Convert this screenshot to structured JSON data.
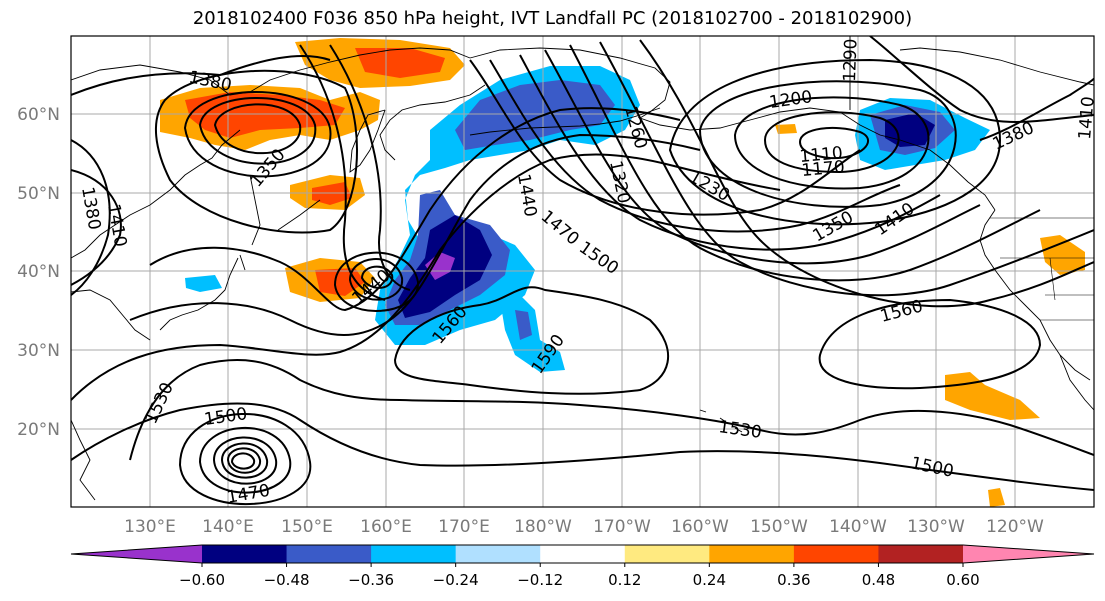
{
  "title": "2018102400 F036 850 hPa height, IVT Landfall PC (2018102700 - 2018102900)",
  "lat_labels": [
    "60°N",
    "50°N",
    "40°N",
    "30°N",
    "20°N"
  ],
  "lon_labels": [
    "130°E",
    "140°E",
    "150°E",
    "160°E",
    "170°E",
    "180°W",
    "170°W",
    "160°W",
    "150°W",
    "140°W",
    "130°W",
    "120°W"
  ],
  "colorbar": {
    "colors": [
      "#9932cc",
      "#000080",
      "#3a5bc8",
      "#00bfff",
      "#b0e0ff",
      "#ffffff",
      "#ffea80",
      "#ffa500",
      "#ff4500",
      "#b22222",
      "#ff85b0"
    ],
    "tick_labels": [
      "−0.60",
      "−0.48",
      "−0.36",
      "−0.24",
      "−0.12",
      "0.12",
      "0.24",
      "0.36",
      "0.48",
      "0.60"
    ]
  },
  "contour_labels": [
    "1380",
    "1350",
    "1410",
    "1380",
    "1440",
    "1470",
    "1500",
    "1560",
    "1590",
    "1530",
    "1500",
    "1470",
    "1440",
    "1320",
    "1260",
    "1230",
    "1200",
    "1110",
    "1170",
    "1290",
    "1350",
    "1410",
    "1380",
    "1410",
    "1560",
    "1530",
    "1500"
  ]
}
